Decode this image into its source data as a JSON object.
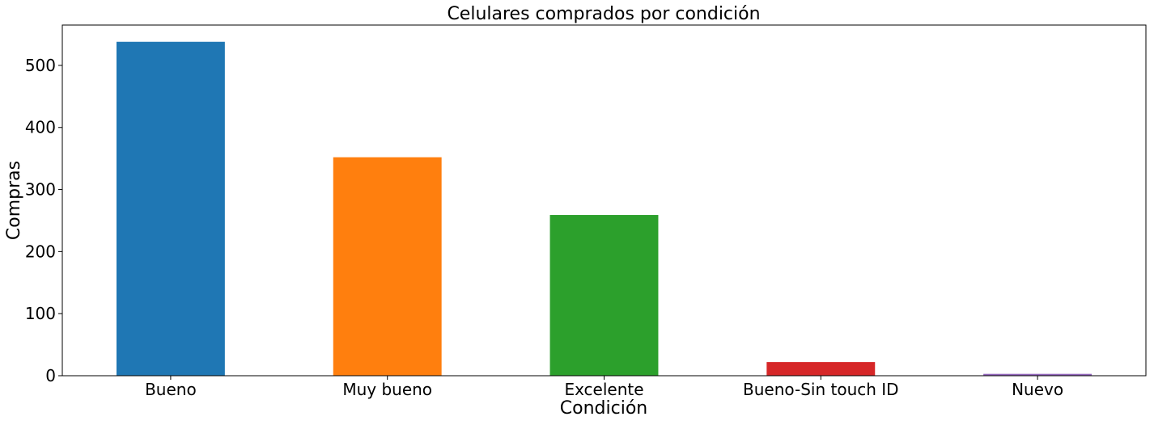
{
  "chart_data": {
    "type": "bar",
    "title": "Celulares comprados por condición",
    "xlabel": "Condición",
    "ylabel": "Compras",
    "categories": [
      "Bueno",
      "Muy bueno",
      "Excelente",
      "Bueno-Sin touch ID",
      "Nuevo"
    ],
    "values": [
      538,
      352,
      259,
      22,
      3
    ],
    "colors": [
      "#1f77b4",
      "#ff7f0e",
      "#2ca02c",
      "#d62728",
      "#9467bd"
    ],
    "ylim": [
      0,
      565
    ],
    "yticks": [
      0,
      100,
      200,
      300,
      400,
      500
    ],
    "grid": false,
    "legend": "none"
  }
}
